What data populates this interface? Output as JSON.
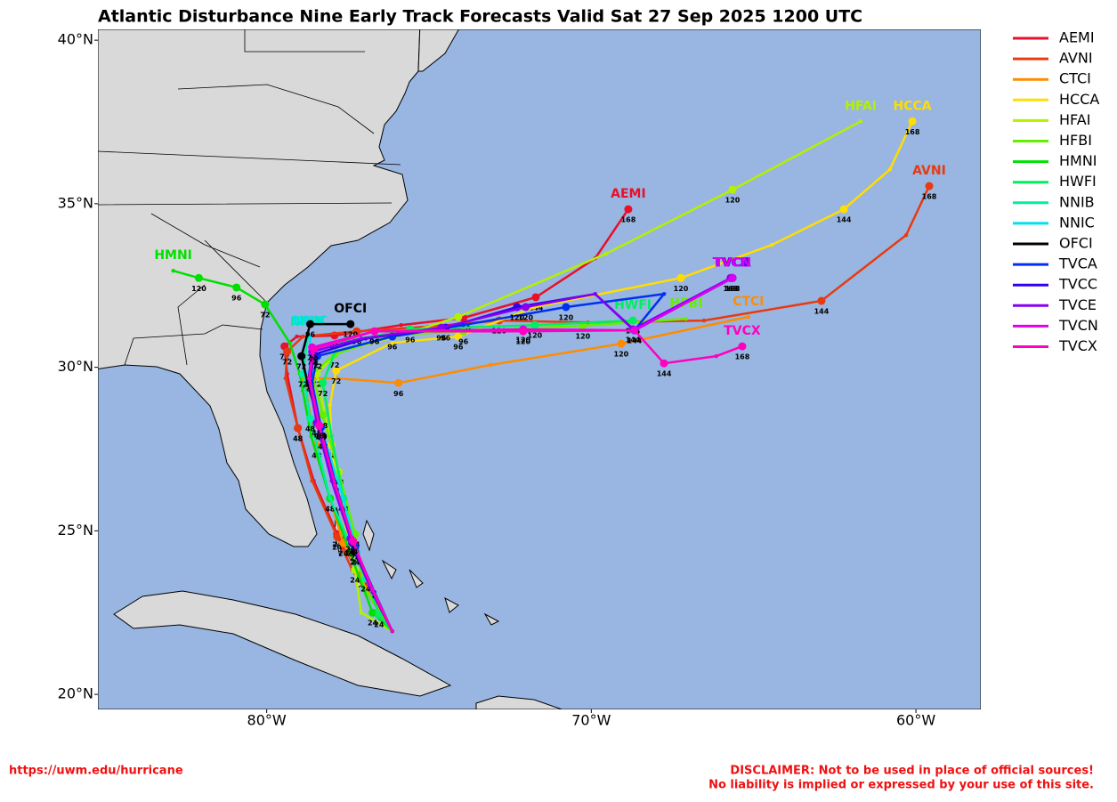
{
  "chart_data": {
    "type": "track-map",
    "title": "Atlantic Disturbance Nine Early Track Forecasts Valid Sat 27 Sep 2025 1200 UTC",
    "xlim": [
      -85.2,
      -58
    ],
    "ylim": [
      19.54,
      40.33
    ],
    "xticks": [
      {
        "value": -80,
        "label": "80°W"
      },
      {
        "value": -70,
        "label": "70°W"
      },
      {
        "value": -60,
        "label": "60°W"
      }
    ],
    "yticks": [
      {
        "value": 20,
        "label": "20°N"
      },
      {
        "value": 25,
        "label": "25°N"
      },
      {
        "value": 30,
        "label": "30°N"
      },
      {
        "value": 35,
        "label": "35°N"
      },
      {
        "value": 40,
        "label": "40°N"
      }
    ],
    "series": [
      {
        "name": "AEMI",
        "color": "#e8102a",
        "x": [
          -76.13,
          -76.68,
          -77.23,
          -77.83,
          -78.55,
          -79.04,
          -79.37,
          -79.45,
          -79.07,
          -77.91,
          -75.86,
          -73.94,
          -71.71,
          -69.88,
          -68.86
        ],
        "y": [
          21.93,
          22.99,
          23.81,
          24.9,
          26.53,
          28.14,
          29.8,
          30.64,
          30.94,
          30.97,
          31.29,
          31.51,
          32.14,
          33.33,
          34.83
        ],
        "hours": [
          null,
          null,
          null,
          24,
          null,
          48,
          null,
          72,
          null,
          96,
          null,
          120,
          144,
          null,
          168
        ]
      },
      {
        "name": "AVNI",
        "color": "#e83a10",
        "x": [
          -76.13,
          -77.37,
          -77.83,
          -78.6,
          -79.04,
          -79.42,
          -79.37,
          -78.88,
          -77.23,
          -75.03,
          -72.84,
          -70.1,
          -66.53,
          -62.91,
          -60.3,
          -59.59
        ],
        "y": [
          21.93,
          23.81,
          24.82,
          26.53,
          28.14,
          29.66,
          30.48,
          30.94,
          31.1,
          31.24,
          31.43,
          31.37,
          31.43,
          32.03,
          34.04,
          35.54
        ],
        "hours": [
          null,
          null,
          24,
          null,
          48,
          null,
          72,
          null,
          96,
          null,
          120,
          null,
          null,
          144,
          null,
          168
        ]
      },
      {
        "name": "CTCI",
        "color": "#ff8c00",
        "x": [
          -76.13,
          -76.95,
          -77.64,
          -78.05,
          -78.46,
          -78.74,
          -78.82,
          -77.83,
          -75.94,
          -73.11,
          -69.08,
          -65.16
        ],
        "y": [
          21.93,
          23.27,
          24.63,
          25.99,
          27.62,
          28.98,
          29.66,
          29.66,
          29.52,
          30.07,
          30.72,
          31.54
        ],
        "hours": [
          null,
          null,
          24,
          null,
          48,
          null,
          72,
          null,
          96,
          null,
          120,
          null
        ]
      },
      {
        "name": "HCCA",
        "color": "#ffdd00",
        "x": [
          -76.13,
          -76.95,
          -77.45,
          -77.78,
          -78.0,
          -78.05,
          -77.86,
          -76.13,
          -74.1,
          -71.74,
          -67.24,
          -64.44,
          -62.22,
          -60.8,
          -60.11
        ],
        "y": [
          21.93,
          23.54,
          24.63,
          25.99,
          27.62,
          28.84,
          29.9,
          30.75,
          30.94,
          31.84,
          32.73,
          33.74,
          34.83,
          36.05,
          37.52
        ],
        "hours": [
          null,
          null,
          24,
          null,
          48,
          null,
          72,
          null,
          96,
          null,
          120,
          null,
          144,
          null,
          168
        ]
      },
      {
        "name": "HFAI",
        "color": "#b4f000",
        "x": [
          -76.13,
          -77.09,
          -77.28,
          -77.5,
          -77.78,
          -78.19,
          -78.46,
          -77.78,
          -75.99,
          -74.1,
          -69.55,
          -65.65,
          -61.7
        ],
        "y": [
          21.93,
          22.5,
          23.81,
          25.17,
          26.8,
          28.44,
          29.8,
          30.48,
          30.94,
          31.54,
          33.47,
          35.43,
          37.52
        ],
        "hours": [
          null,
          null,
          24,
          null,
          48,
          null,
          72,
          null,
          null,
          96,
          null,
          120,
          null
        ]
      },
      {
        "name": "HFBI",
        "color": "#66ee00",
        "x": [
          -76.13,
          -77.01,
          -77.28,
          -77.78,
          -78.27,
          -78.6,
          -77.91,
          -76.13,
          -73.94,
          -70.26,
          -67.08
        ],
        "y": [
          21.93,
          23.27,
          24.9,
          26.8,
          28.54,
          29.8,
          30.39,
          30.99,
          31.1,
          31.27,
          31.48
        ],
        "hours": [
          null,
          null,
          24,
          null,
          48,
          null,
          72,
          null,
          96,
          120,
          null
        ]
      },
      {
        "name": "HMNI",
        "color": "#00e000",
        "x": [
          -76.13,
          -76.74,
          -77.34,
          -78.05,
          -78.63,
          -78.98,
          -79.29,
          -80.05,
          -80.93,
          -82.09,
          -82.88
        ],
        "y": [
          21.93,
          22.5,
          24.08,
          25.99,
          27.89,
          29.8,
          30.75,
          31.92,
          32.44,
          32.73,
          32.95
        ],
        "hours": [
          null,
          24,
          null,
          48,
          null,
          null,
          null,
          72,
          96,
          120,
          null
        ]
      },
      {
        "name": "HWFI",
        "color": "#00ee60",
        "x": [
          -76.13,
          -76.54,
          -77.23,
          -77.64,
          -78.0,
          -78.27,
          -77.78,
          -75.58,
          -71.74,
          -68.72
        ],
        "y": [
          21.93,
          22.45,
          24.35,
          25.99,
          27.89,
          29.52,
          30.75,
          31.16,
          31.29,
          31.43
        ],
        "hours": [
          null,
          24,
          null,
          48,
          null,
          72,
          null,
          96,
          120,
          144
        ]
      },
      {
        "name": "NNIB",
        "color": "#00eea0",
        "x": [
          -76.13,
          -76.95,
          -78.05,
          -78.66,
          -78.88,
          -78.74
        ],
        "y": [
          21.93,
          23.54,
          25.99,
          28.44,
          29.8,
          30.91
        ],
        "hours": [
          null,
          24,
          null,
          48,
          72,
          null
        ]
      },
      {
        "name": "NNIC",
        "color": "#00e0f0",
        "x": [
          -76.13,
          -76.68,
          -77.23,
          -77.64,
          -78.33,
          -78.68,
          -78.66
        ],
        "y": [
          21.93,
          23.05,
          24.35,
          25.99,
          28.16,
          29.8,
          30.94
        ],
        "hours": [
          null,
          null,
          24,
          null,
          48,
          72,
          null
        ]
      },
      {
        "name": "OFCI",
        "color": "#000000",
        "x": [
          -76.13,
          -76.68,
          -77.28,
          -77.78,
          -78.27,
          -78.74,
          -78.93,
          -78.66,
          -77.42
        ],
        "y": [
          21.93,
          22.99,
          24.35,
          25.99,
          27.89,
          29.52,
          30.34,
          31.32,
          31.32
        ],
        "hours": [
          null,
          null,
          24,
          null,
          48,
          null,
          72,
          96,
          120
        ]
      },
      {
        "name": "TVCA",
        "color": "#0030f0",
        "x": [
          -76.13,
          -76.68,
          -77.28,
          -77.83,
          -78.33,
          -78.6,
          -78.44,
          -76.13,
          -73.94,
          -70.78,
          -67.76,
          -68.67,
          -65.65
        ],
        "y": [
          21.93,
          23.13,
          24.49,
          26.26,
          28.16,
          29.52,
          30.34,
          30.94,
          31.29,
          31.84,
          32.24,
          31.13,
          32.73
        ],
        "hours": [
          null,
          null,
          24,
          null,
          48,
          null,
          72,
          96,
          null,
          120,
          null,
          144,
          168
        ]
      },
      {
        "name": "TVCC",
        "color": "#3000e8",
        "x": [
          -76.13,
          -76.74,
          -77.37,
          -77.91,
          -78.38,
          -78.66,
          -78.55,
          -76.95,
          -74.49,
          -72.29,
          -69.88,
          -68.67,
          -65.65
        ],
        "y": [
          21.93,
          23.13,
          24.63,
          26.39,
          28.22,
          29.58,
          30.39,
          30.88,
          31.21,
          31.84,
          32.24,
          31.13,
          32.73
        ],
        "hours": [
          null,
          null,
          24,
          null,
          48,
          null,
          72,
          null,
          96,
          120,
          null,
          144,
          168
        ]
      },
      {
        "name": "TVCE",
        "color": "#8800f0",
        "x": [
          -76.13,
          -76.82,
          -77.42,
          -78.0,
          -78.46,
          -78.71,
          -78.6,
          -77.09,
          -74.62,
          -72.02,
          -69.88,
          -68.72,
          -65.71
        ],
        "y": [
          21.93,
          23.27,
          24.76,
          26.53,
          28.3,
          29.66,
          30.48,
          30.88,
          31.21,
          31.84,
          32.24,
          31.16,
          32.73
        ],
        "hours": [
          null,
          null,
          24,
          null,
          48,
          null,
          72,
          null,
          96,
          120,
          null,
          144,
          168
        ]
      },
      {
        "name": "TVCN",
        "color": "#e000f0",
        "x": [
          -76.13,
          -76.74,
          -77.34,
          -77.89,
          -78.38,
          -78.68,
          -78.6,
          -76.68,
          -72.1,
          -68.67,
          -65.65
        ],
        "y": [
          21.93,
          23.21,
          24.68,
          26.39,
          28.22,
          29.66,
          30.61,
          31.1,
          31.16,
          31.13,
          32.73
        ],
        "hours": [
          null,
          null,
          24,
          null,
          48,
          null,
          72,
          96,
          120,
          144,
          168
        ]
      },
      {
        "name": "TVCX",
        "color": "#ff00c0",
        "x": [
          -76.13,
          -76.74,
          -77.34,
          -77.89,
          -78.38,
          -78.68,
          -78.55,
          -76.68,
          -72.1,
          -68.67,
          -67.76,
          -66.15,
          -65.35
        ],
        "y": [
          21.93,
          23.21,
          24.68,
          26.39,
          28.22,
          29.66,
          30.56,
          31.1,
          31.1,
          31.13,
          30.12,
          30.34,
          30.64
        ],
        "hours": [
          null,
          null,
          24,
          null,
          48,
          null,
          72,
          96,
          120,
          null,
          144,
          null,
          168
        ]
      }
    ]
  },
  "footer": {
    "url": "https://uwm.edu/hurricane",
    "disclaimer": [
      "DISCLAIMER: Not to be used in place of official sources!",
      "No liability is implied or expressed by your use of this site."
    ]
  }
}
